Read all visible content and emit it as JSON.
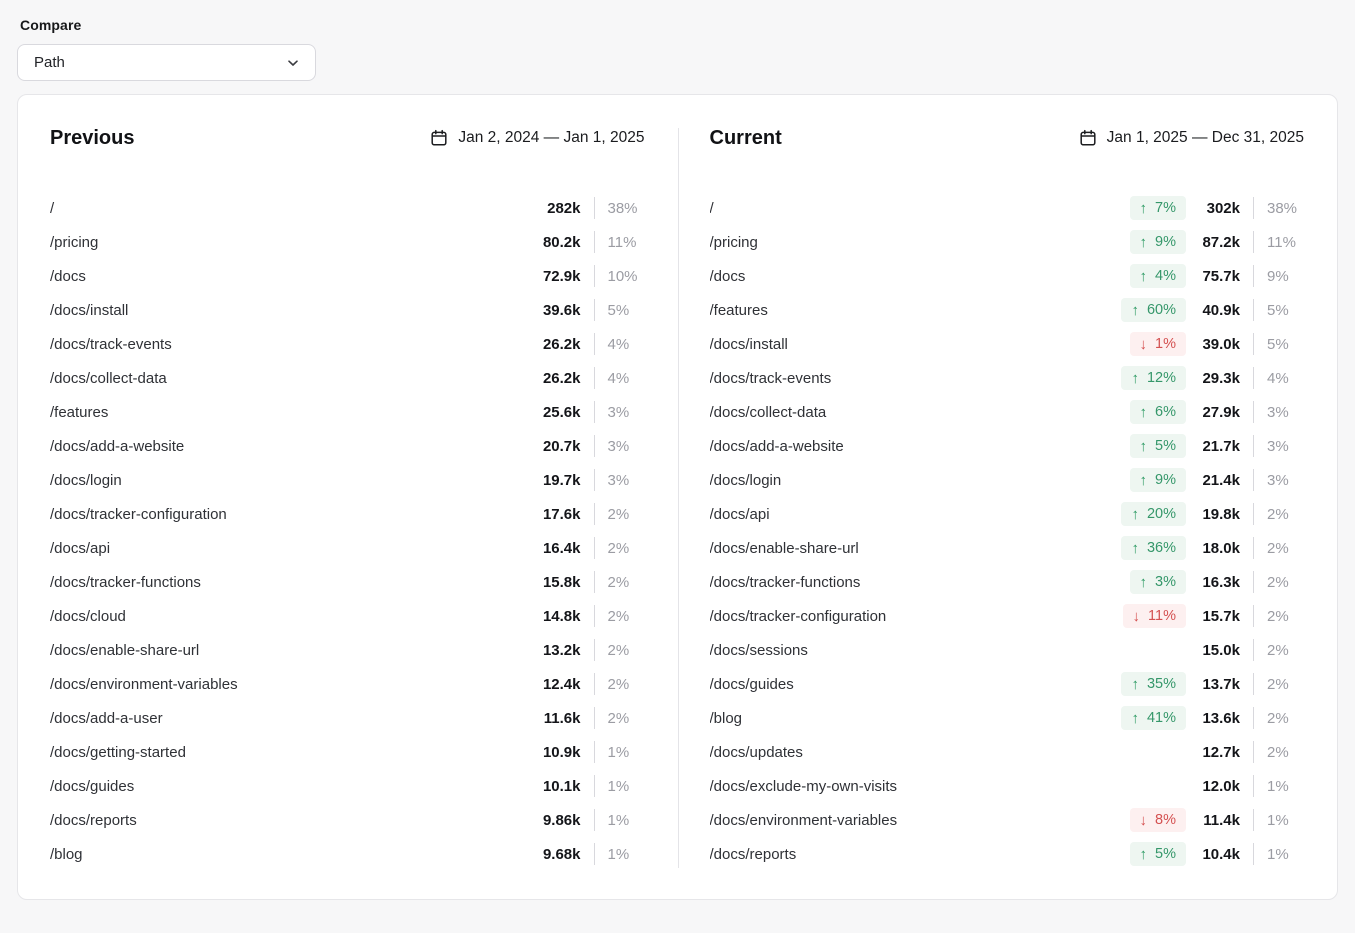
{
  "compare": {
    "label": "Compare",
    "selected_dimension": "Path"
  },
  "icons": {
    "arrow_up": "↑",
    "arrow_down": "↓",
    "chevron_down": "chevron-down",
    "calendar": "calendar"
  },
  "colors": {
    "page_background": "#f7f7f8",
    "card_background": "#ffffff",
    "positive_text": "#35976a",
    "positive_background": "#eef6f1",
    "negative_text": "#d45151",
    "negative_background": "#fdf0f0",
    "muted_text": "#9b9ca3"
  },
  "panels": [
    {
      "title": "Previous",
      "date_range": "Jan 2, 2024 — Jan 1, 2025",
      "rows": [
        {
          "path": "/",
          "value": "282k",
          "share": "38%"
        },
        {
          "path": "/pricing",
          "value": "80.2k",
          "share": "11%"
        },
        {
          "path": "/docs",
          "value": "72.9k",
          "share": "10%"
        },
        {
          "path": "/docs/install",
          "value": "39.6k",
          "share": "5%"
        },
        {
          "path": "/docs/track-events",
          "value": "26.2k",
          "share": "4%"
        },
        {
          "path": "/docs/collect-data",
          "value": "26.2k",
          "share": "4%"
        },
        {
          "path": "/features",
          "value": "25.6k",
          "share": "3%"
        },
        {
          "path": "/docs/add-a-website",
          "value": "20.7k",
          "share": "3%"
        },
        {
          "path": "/docs/login",
          "value": "19.7k",
          "share": "3%"
        },
        {
          "path": "/docs/tracker-configuration",
          "value": "17.6k",
          "share": "2%"
        },
        {
          "path": "/docs/api",
          "value": "16.4k",
          "share": "2%"
        },
        {
          "path": "/docs/tracker-functions",
          "value": "15.8k",
          "share": "2%"
        },
        {
          "path": "/docs/cloud",
          "value": "14.8k",
          "share": "2%"
        },
        {
          "path": "/docs/enable-share-url",
          "value": "13.2k",
          "share": "2%"
        },
        {
          "path": "/docs/environment-variables",
          "value": "12.4k",
          "share": "2%"
        },
        {
          "path": "/docs/add-a-user",
          "value": "11.6k",
          "share": "2%"
        },
        {
          "path": "/docs/getting-started",
          "value": "10.9k",
          "share": "1%"
        },
        {
          "path": "/docs/guides",
          "value": "10.1k",
          "share": "1%"
        },
        {
          "path": "/docs/reports",
          "value": "9.86k",
          "share": "1%"
        },
        {
          "path": "/blog",
          "value": "9.68k",
          "share": "1%"
        }
      ]
    },
    {
      "title": "Current",
      "date_range": "Jan 1, 2025 — Dec 31, 2025",
      "rows": [
        {
          "path": "/",
          "change": "7%",
          "direction": "up",
          "value": "302k",
          "share": "38%"
        },
        {
          "path": "/pricing",
          "change": "9%",
          "direction": "up",
          "value": "87.2k",
          "share": "11%"
        },
        {
          "path": "/docs",
          "change": "4%",
          "direction": "up",
          "value": "75.7k",
          "share": "9%"
        },
        {
          "path": "/features",
          "change": "60%",
          "direction": "up",
          "value": "40.9k",
          "share": "5%"
        },
        {
          "path": "/docs/install",
          "change": "1%",
          "direction": "down",
          "value": "39.0k",
          "share": "5%"
        },
        {
          "path": "/docs/track-events",
          "change": "12%",
          "direction": "up",
          "value": "29.3k",
          "share": "4%"
        },
        {
          "path": "/docs/collect-data",
          "change": "6%",
          "direction": "up",
          "value": "27.9k",
          "share": "3%"
        },
        {
          "path": "/docs/add-a-website",
          "change": "5%",
          "direction": "up",
          "value": "21.7k",
          "share": "3%"
        },
        {
          "path": "/docs/login",
          "change": "9%",
          "direction": "up",
          "value": "21.4k",
          "share": "3%"
        },
        {
          "path": "/docs/api",
          "change": "20%",
          "direction": "up",
          "value": "19.8k",
          "share": "2%"
        },
        {
          "path": "/docs/enable-share-url",
          "change": "36%",
          "direction": "up",
          "value": "18.0k",
          "share": "2%"
        },
        {
          "path": "/docs/tracker-functions",
          "change": "3%",
          "direction": "up",
          "value": "16.3k",
          "share": "2%"
        },
        {
          "path": "/docs/tracker-configuration",
          "change": "11%",
          "direction": "down",
          "value": "15.7k",
          "share": "2%"
        },
        {
          "path": "/docs/sessions",
          "value": "15.0k",
          "share": "2%"
        },
        {
          "path": "/docs/guides",
          "change": "35%",
          "direction": "up",
          "value": "13.7k",
          "share": "2%"
        },
        {
          "path": "/blog",
          "change": "41%",
          "direction": "up",
          "value": "13.6k",
          "share": "2%"
        },
        {
          "path": "/docs/updates",
          "value": "12.7k",
          "share": "2%"
        },
        {
          "path": "/docs/exclude-my-own-visits",
          "value": "12.0k",
          "share": "1%"
        },
        {
          "path": "/docs/environment-variables",
          "change": "8%",
          "direction": "down",
          "value": "11.4k",
          "share": "1%"
        },
        {
          "path": "/docs/reports",
          "change": "5%",
          "direction": "up",
          "value": "10.4k",
          "share": "1%"
        }
      ]
    }
  ]
}
